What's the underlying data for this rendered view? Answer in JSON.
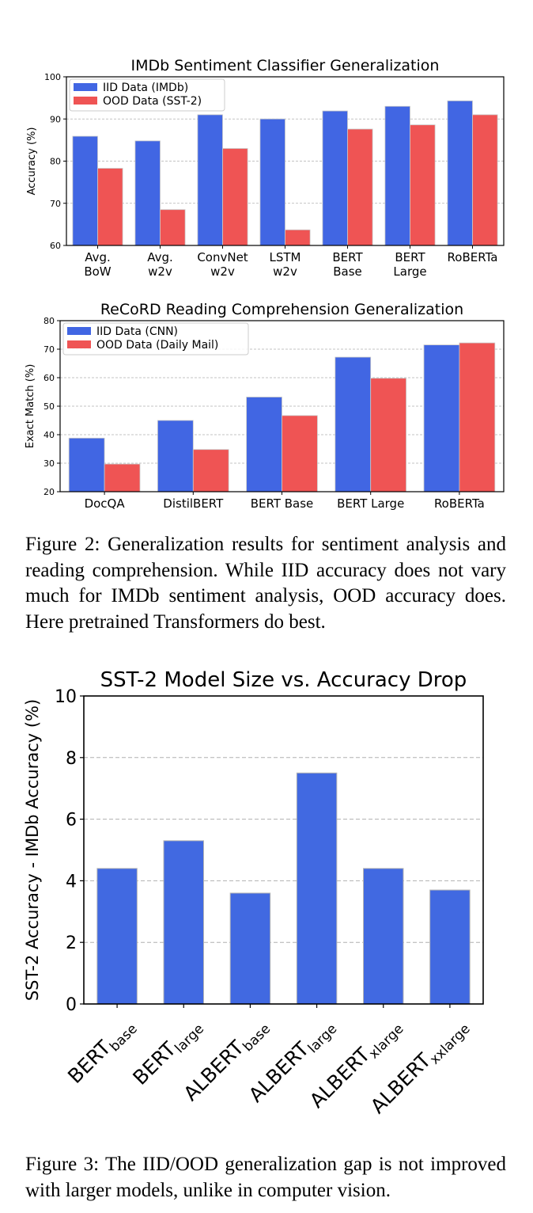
{
  "chart_data": [
    {
      "type": "bar",
      "title": "IMDb Sentiment Classifier Generalization",
      "ylabel": "Accuracy (%)",
      "ylim": [
        60,
        100
      ],
      "yticks": [
        60,
        70,
        80,
        90,
        100
      ],
      "grid": true,
      "legend": "top-left",
      "categories": [
        [
          "Avg.",
          "BoW"
        ],
        [
          "Avg.",
          "w2v"
        ],
        [
          "ConvNet",
          "w2v"
        ],
        [
          "LSTM",
          "w2v"
        ],
        [
          "BERT",
          "Base"
        ],
        [
          "BERT",
          "Large"
        ],
        [
          "RoBERTa"
        ]
      ],
      "series": [
        {
          "name": "IID Data (IMDb)",
          "color": "#4166e3",
          "values": [
            85.9,
            84.8,
            91.0,
            90.0,
            91.9,
            93.0,
            94.3
          ]
        },
        {
          "name": "OOD Data (SST-2)",
          "color": "#ef5454",
          "values": [
            78.3,
            68.5,
            83.0,
            63.7,
            87.6,
            88.6,
            91.0
          ]
        }
      ]
    },
    {
      "type": "bar",
      "title": "ReCoRD Reading Comprehension Generalization",
      "ylabel": "Exact Match (%)",
      "ylim": [
        20,
        80
      ],
      "yticks": [
        20,
        30,
        40,
        50,
        60,
        70,
        80
      ],
      "grid": true,
      "legend": "top-left",
      "categories": [
        [
          "DocQA"
        ],
        [
          "DistilBERT"
        ],
        [
          "BERT Base"
        ],
        [
          "BERT Large"
        ],
        [
          "RoBERTa"
        ]
      ],
      "series": [
        {
          "name": "IID Data (CNN)",
          "color": "#4166e3",
          "values": [
            38.8,
            45.0,
            53.2,
            67.2,
            71.5
          ]
        },
        {
          "name": "OOD Data (Daily Mail)",
          "color": "#ef5454",
          "values": [
            29.7,
            34.8,
            46.7,
            59.8,
            72.2
          ]
        }
      ]
    },
    {
      "type": "bar",
      "title": "SST-2 Model Size vs. Accuracy Drop",
      "ylabel": "SST-2 Accuracy - IMDb Accuracy (%)",
      "ylim": [
        0,
        10
      ],
      "yticks": [
        0,
        2,
        4,
        6,
        8,
        10
      ],
      "grid": true,
      "categories": [
        {
          "main": "BERT",
          "sub": "base"
        },
        {
          "main": "BERT",
          "sub": "large"
        },
        {
          "main": "ALBERT",
          "sub": "base"
        },
        {
          "main": "ALBERT",
          "sub": "large"
        },
        {
          "main": "ALBERT",
          "sub": "xlarge"
        },
        {
          "main": "ALBERT",
          "sub": "xxlarge"
        }
      ],
      "series": [
        {
          "color": "#4169e1",
          "values": [
            4.4,
            5.3,
            3.6,
            7.5,
            4.4,
            3.7
          ]
        }
      ]
    }
  ],
  "captions": {
    "figure2": "Figure 2: Generalization results for sentiment analysis and reading comprehension. While IID accuracy does not vary much for IMDb sentiment analysis, OOD accuracy does. Here pretrained Transformers do best.",
    "figure3": "Figure 3: The IID/OOD generalization gap is not improved with larger models, unlike in computer vision."
  }
}
